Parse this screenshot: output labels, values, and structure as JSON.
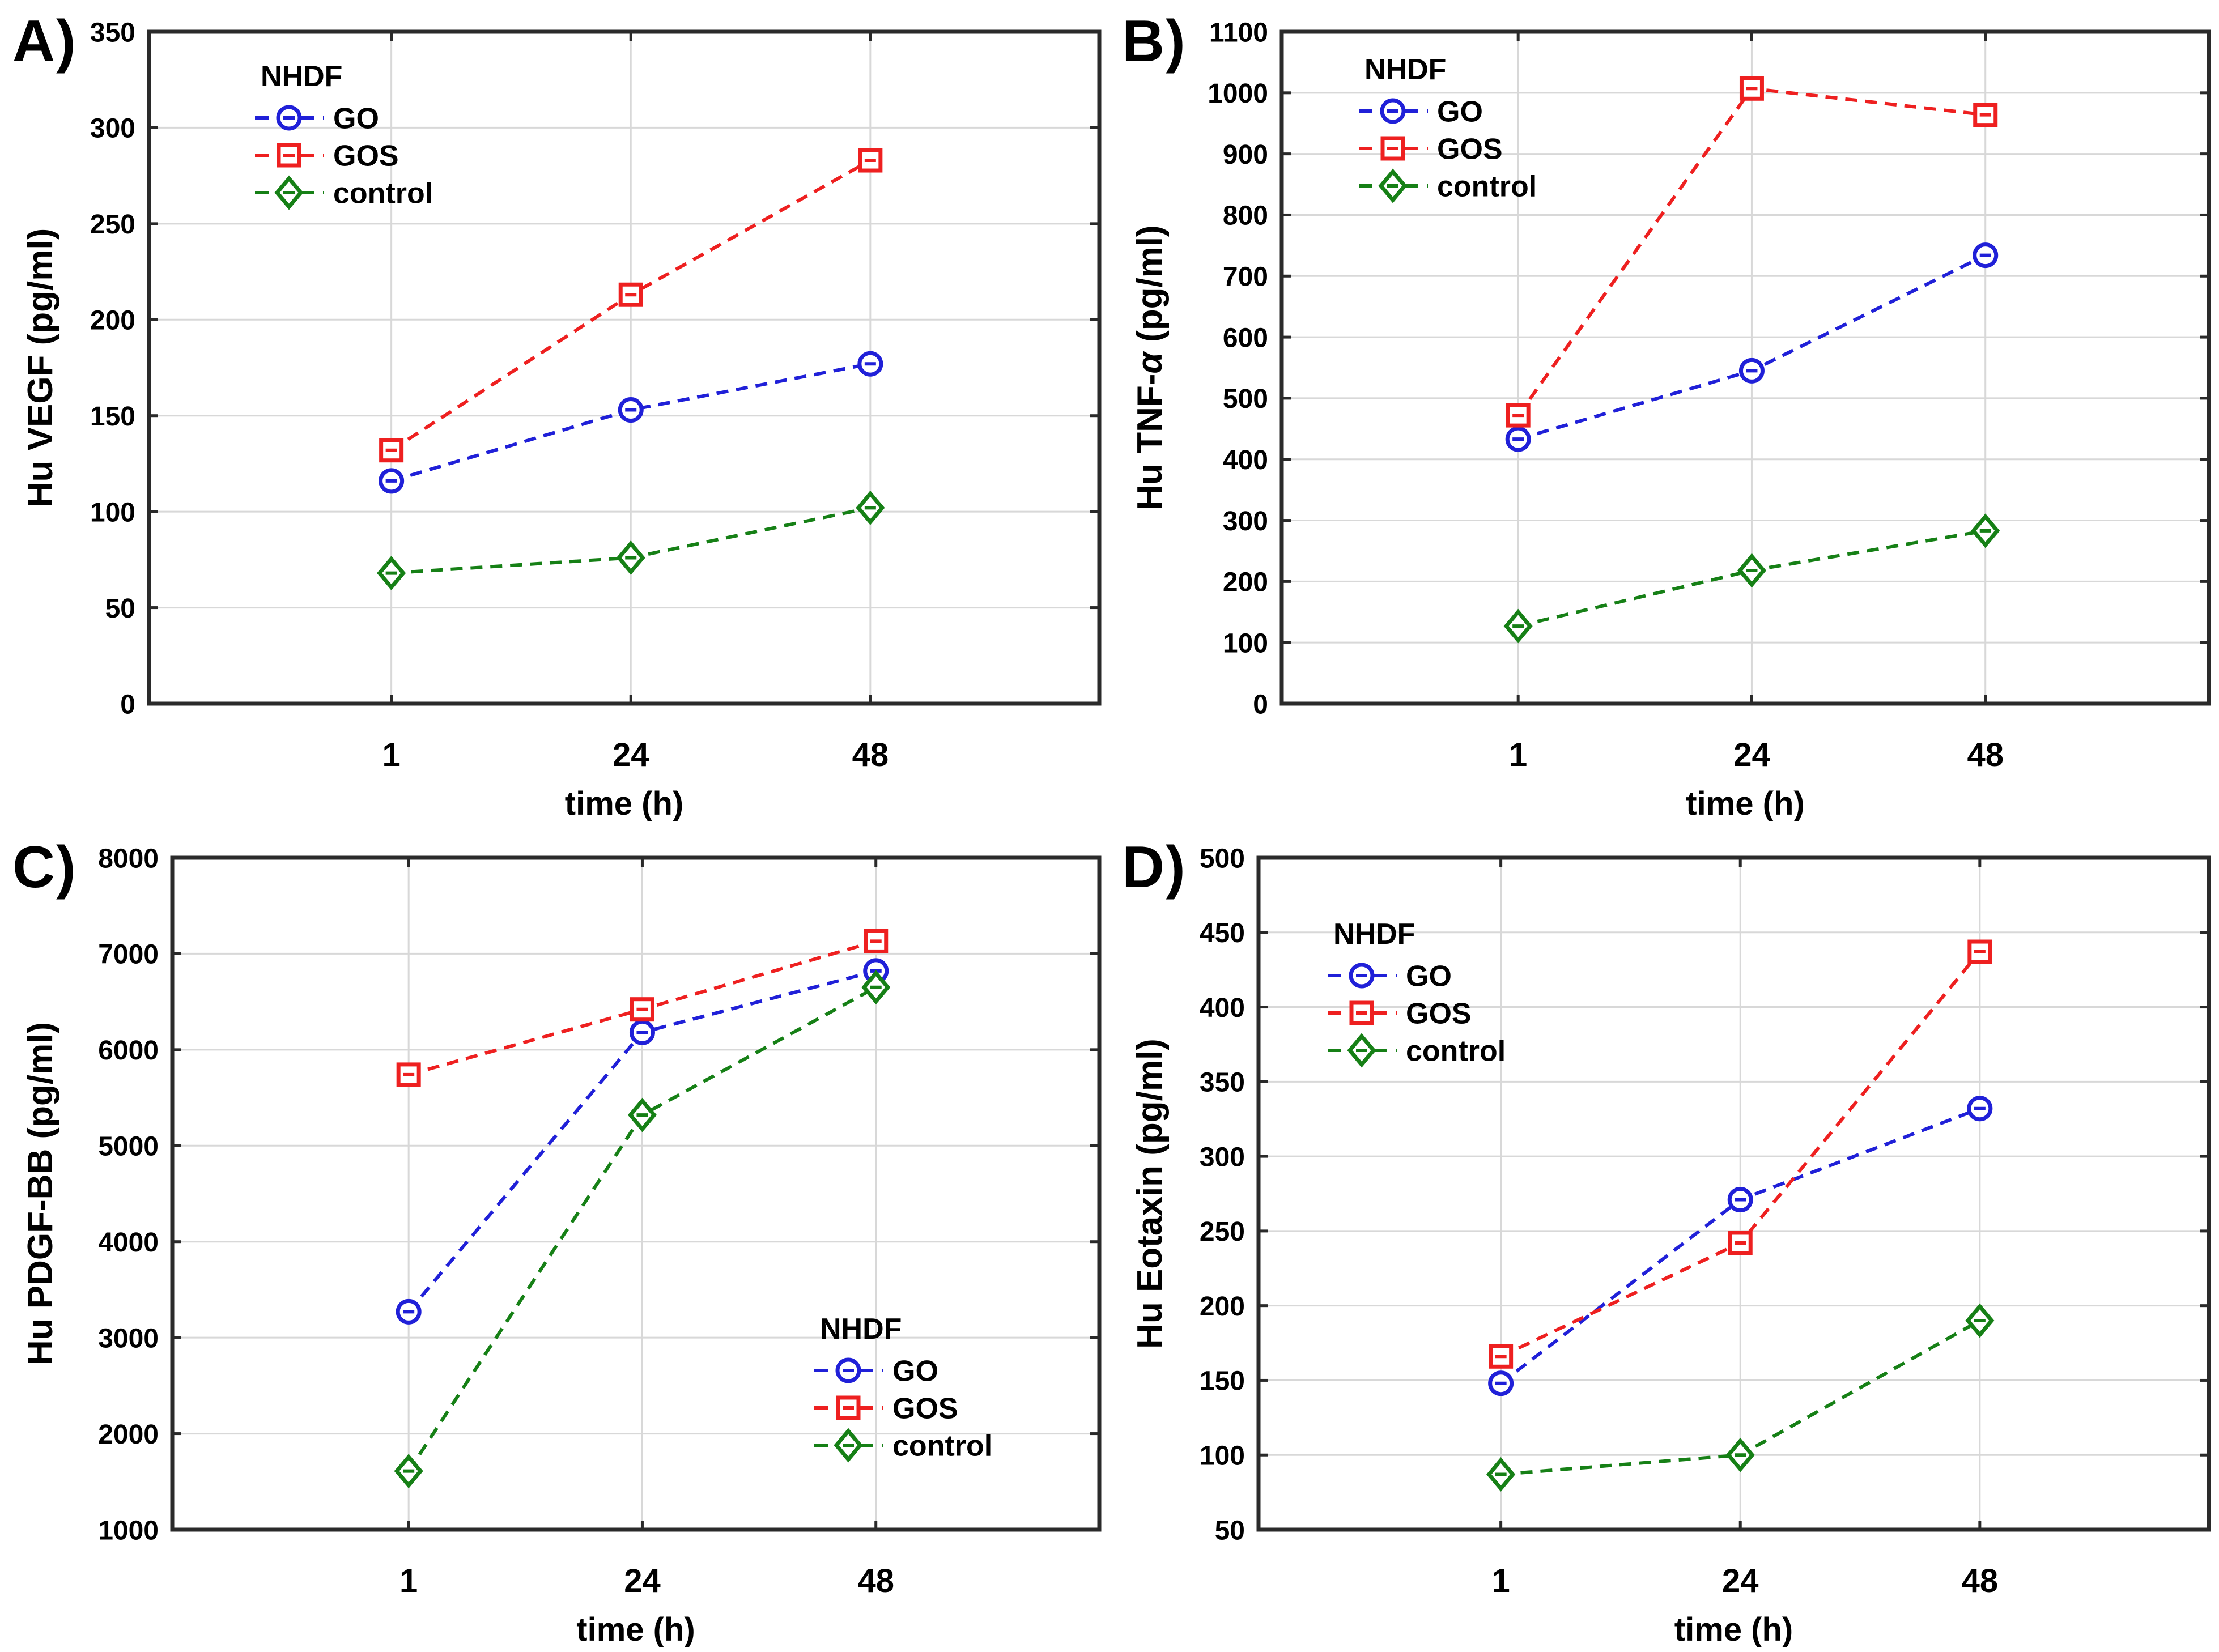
{
  "figure": {
    "background": "#ffffff",
    "grid_color": "#d8d8d8",
    "frame_color": "#2a2a2a",
    "text_color": "#000000"
  },
  "legend": {
    "title": "NHDF",
    "entries": [
      "GO",
      "GOS",
      "control"
    ]
  },
  "series_defs": [
    {
      "name": "GO",
      "color": "#2020d8",
      "marker": "circle"
    },
    {
      "name": "GOS",
      "color": "#ee2020",
      "marker": "square"
    },
    {
      "name": "control",
      "color": "#168016",
      "marker": "diamond"
    }
  ],
  "chart_data": [
    {
      "type": "line",
      "panel_label": "A)",
      "title": "",
      "xlabel": "time (h)",
      "ylabel": "Hu VEGF (pg/ml)",
      "categories": [
        "1",
        "24",
        "48"
      ],
      "ylim": [
        0,
        350
      ],
      "ystep": 50,
      "yticks": [
        0,
        50,
        100,
        150,
        200,
        250,
        300,
        350
      ],
      "grid": true,
      "legend_title": "NHDF",
      "legend_position": "top-left",
      "series": [
        {
          "name": "GO",
          "values": [
            116,
            153,
            177
          ]
        },
        {
          "name": "GOS",
          "values": [
            132,
            213,
            283
          ]
        },
        {
          "name": "control",
          "values": [
            68,
            76,
            102
          ]
        }
      ]
    },
    {
      "type": "line",
      "panel_label": "B)",
      "title": "",
      "xlabel": "time (h)",
      "ylabel": "Hu TNF-α (pg/ml)",
      "categories": [
        "1",
        "24",
        "48"
      ],
      "ylim": [
        0,
        1100
      ],
      "ystep": 100,
      "yticks": [
        0,
        100,
        200,
        300,
        400,
        500,
        600,
        700,
        800,
        900,
        1000,
        1100
      ],
      "grid": true,
      "legend_title": "NHDF",
      "legend_position": "top-left",
      "series": [
        {
          "name": "GO",
          "values": [
            433,
            545,
            734
          ]
        },
        {
          "name": "GOS",
          "values": [
            472,
            1007,
            964
          ]
        },
        {
          "name": "control",
          "values": [
            127,
            218,
            283
          ]
        }
      ]
    },
    {
      "type": "line",
      "panel_label": "C)",
      "title": "",
      "xlabel": "time (h)",
      "ylabel": "Hu PDGF-BB (pg/ml)",
      "categories": [
        "1",
        "24",
        "48"
      ],
      "ylim": [
        1000,
        8000
      ],
      "ystep": 1000,
      "yticks": [
        1000,
        2000,
        3000,
        4000,
        5000,
        6000,
        7000,
        8000
      ],
      "grid": true,
      "legend_title": "NHDF",
      "legend_position": "bottom-right",
      "series": [
        {
          "name": "GO",
          "values": [
            3270,
            6180,
            6820
          ]
        },
        {
          "name": "GOS",
          "values": [
            5740,
            6420,
            7130
          ]
        },
        {
          "name": "control",
          "values": [
            1610,
            5320,
            6650
          ]
        }
      ]
    },
    {
      "type": "line",
      "panel_label": "D)",
      "title": "",
      "xlabel": "time (h)",
      "ylabel": "Hu Eotaxin (pg/ml)",
      "categories": [
        "1",
        "24",
        "48"
      ],
      "ylim": [
        50,
        500
      ],
      "ystep": 50,
      "yticks": [
        50,
        100,
        150,
        200,
        250,
        300,
        350,
        400,
        450,
        500
      ],
      "grid": true,
      "legend_title": "NHDF",
      "legend_position": "top-left",
      "series": [
        {
          "name": "GO",
          "values": [
            148,
            271,
            332
          ]
        },
        {
          "name": "GOS",
          "values": [
            166,
            242,
            437
          ]
        },
        {
          "name": "control",
          "values": [
            87,
            100,
            190
          ]
        }
      ]
    }
  ]
}
